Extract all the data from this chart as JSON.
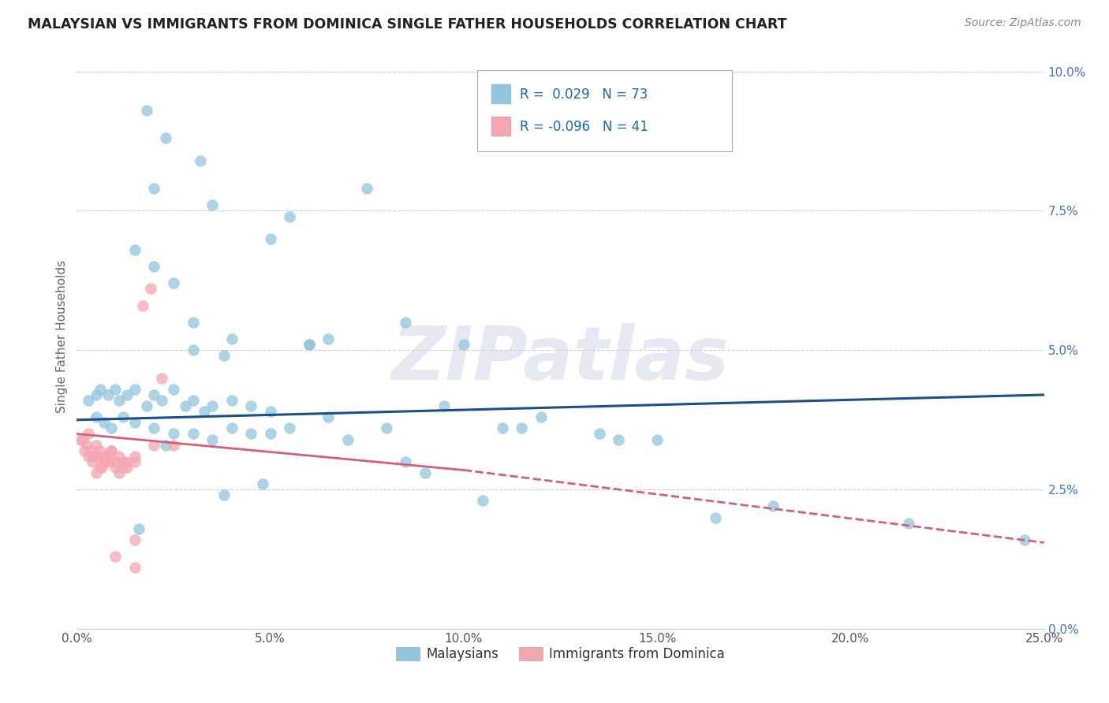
{
  "title": "MALAYSIAN VS IMMIGRANTS FROM DOMINICA SINGLE FATHER HOUSEHOLDS CORRELATION CHART",
  "source": "Source: ZipAtlas.com",
  "ylabel": "Single Father Households",
  "xlabel_vals": [
    0.0,
    5.0,
    10.0,
    15.0,
    20.0,
    25.0
  ],
  "ylabel_vals": [
    0.0,
    2.5,
    5.0,
    7.5,
    10.0
  ],
  "xlim": [
    0,
    25
  ],
  "ylim": [
    0,
    10.5
  ],
  "blue_color": "#92c5de",
  "pink_color": "#f4a6b0",
  "blue_line_color": "#1a4f8a",
  "pink_line_color": "#d45f7a",
  "watermark": "ZIPatlas",
  "blue_line_x0": 0.0,
  "blue_line_y0": 3.75,
  "blue_line_x1": 25.0,
  "blue_line_y1": 4.2,
  "pink_line_x0": 0.0,
  "pink_line_y0": 3.5,
  "pink_line_solid_end_x": 10.0,
  "pink_line_solid_end_y": 2.85,
  "pink_line_x1": 25.0,
  "pink_line_y1": 1.55,
  "blue_x": [
    1.8,
    2.3,
    3.2,
    2.0,
    3.5,
    5.5,
    5.0,
    1.5,
    2.0,
    2.5,
    3.0,
    4.0,
    3.0,
    3.8,
    6.0,
    6.5,
    7.5,
    8.5,
    10.0,
    12.0,
    13.5,
    0.3,
    0.5,
    0.6,
    0.8,
    1.0,
    1.1,
    1.3,
    1.5,
    1.8,
    2.0,
    2.2,
    2.5,
    2.8,
    3.0,
    3.3,
    3.5,
    4.0,
    4.5,
    5.0,
    0.5,
    0.7,
    0.9,
    1.2,
    1.5,
    2.0,
    2.5,
    3.0,
    3.5,
    4.0,
    4.5,
    5.5,
    6.5,
    8.0,
    9.5,
    11.0,
    14.0,
    18.0,
    21.5,
    24.5,
    7.0,
    8.5,
    10.5,
    15.0,
    16.5,
    6.0,
    9.0,
    11.5,
    5.0,
    4.8,
    3.8,
    2.3,
    1.6
  ],
  "blue_y": [
    9.3,
    8.8,
    8.4,
    7.9,
    7.6,
    7.4,
    7.0,
    6.8,
    6.5,
    6.2,
    5.5,
    5.2,
    5.0,
    4.9,
    5.1,
    5.2,
    7.9,
    5.5,
    5.1,
    3.8,
    3.5,
    4.1,
    4.2,
    4.3,
    4.2,
    4.3,
    4.1,
    4.2,
    4.3,
    4.0,
    4.2,
    4.1,
    4.3,
    4.0,
    4.1,
    3.9,
    4.0,
    4.1,
    4.0,
    3.9,
    3.8,
    3.7,
    3.6,
    3.8,
    3.7,
    3.6,
    3.5,
    3.5,
    3.4,
    3.6,
    3.5,
    3.6,
    3.8,
    3.6,
    4.0,
    3.6,
    3.4,
    2.2,
    1.9,
    1.6,
    3.4,
    3.0,
    2.3,
    3.4,
    2.0,
    5.1,
    2.8,
    3.6,
    3.5,
    2.6,
    2.4,
    3.3,
    1.8
  ],
  "pink_x": [
    0.1,
    0.2,
    0.25,
    0.3,
    0.35,
    0.4,
    0.45,
    0.5,
    0.55,
    0.6,
    0.65,
    0.7,
    0.75,
    0.8,
    0.9,
    1.0,
    1.1,
    1.2,
    1.3,
    1.5,
    1.7,
    1.9,
    2.2,
    2.5,
    0.15,
    0.3,
    0.4,
    0.5,
    0.6,
    0.7,
    0.8,
    0.9,
    1.0,
    1.1,
    1.2,
    1.3,
    1.5,
    2.0,
    1.0,
    1.5,
    1.5
  ],
  "pink_y": [
    3.4,
    3.2,
    3.3,
    3.1,
    3.2,
    3.0,
    3.1,
    3.3,
    3.1,
    3.2,
    2.9,
    3.0,
    3.1,
    3.0,
    3.2,
    2.9,
    3.1,
    3.0,
    2.9,
    3.0,
    5.8,
    6.1,
    4.5,
    3.3,
    3.4,
    3.5,
    3.1,
    2.8,
    2.9,
    3.0,
    3.1,
    3.2,
    3.0,
    2.8,
    2.9,
    3.0,
    3.1,
    3.3,
    1.3,
    1.1,
    1.6
  ]
}
